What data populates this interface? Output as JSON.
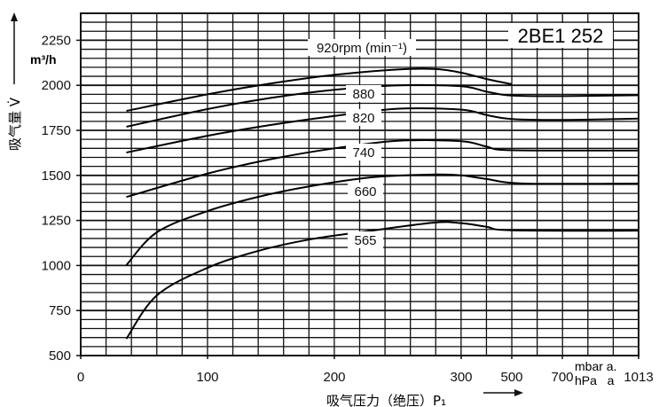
{
  "chart_data": {
    "type": "line",
    "title": "2BE1 252",
    "xlabel": "吸气压力（绝压）P₁",
    "ylabel": "吸气量 V̇",
    "yunit": "m³/h",
    "xunit_top": "mbar a.",
    "xunit_bottom": "hPa   a",
    "xticks": [
      0,
      100,
      200,
      300,
      500,
      700,
      1013
    ],
    "xtick_labels": [
      "0",
      "100",
      "200",
      "300",
      "500",
      "700",
      "1013"
    ],
    "yticks": [
      500,
      750,
      1000,
      1250,
      1500,
      1750,
      2000,
      2250
    ],
    "ytick_labels": [
      "500",
      "750",
      "1000",
      "1250",
      "1500",
      "1750",
      "2000",
      "2250"
    ],
    "ylim": [
      500,
      2400
    ],
    "xlim": [
      0,
      1013
    ],
    "grid": true,
    "series": [
      {
        "name": "920rpm (min⁻¹)",
        "points": [
          [
            36,
            1858
          ],
          [
            100,
            1950
          ],
          [
            150,
            2010
          ],
          [
            200,
            2058
          ],
          [
            250,
            2088
          ],
          [
            280,
            2090
          ],
          [
            300,
            2070
          ],
          [
            400,
            2035
          ],
          [
            500,
            2006
          ]
        ]
      },
      {
        "name": "880",
        "points": [
          [
            36,
            1770
          ],
          [
            100,
            1868
          ],
          [
            150,
            1930
          ],
          [
            200,
            1975
          ],
          [
            250,
            2000
          ],
          [
            300,
            1995
          ],
          [
            400,
            1965
          ],
          [
            500,
            1943
          ],
          [
            700,
            1940
          ],
          [
            1013,
            1945
          ]
        ]
      },
      {
        "name": "820",
        "points": [
          [
            36,
            1627
          ],
          [
            100,
            1720
          ],
          [
            150,
            1780
          ],
          [
            200,
            1830
          ],
          [
            250,
            1870
          ],
          [
            300,
            1865
          ],
          [
            400,
            1835
          ],
          [
            500,
            1813
          ],
          [
            700,
            1808
          ],
          [
            1013,
            1815
          ]
        ]
      },
      {
        "name": "740",
        "points": [
          [
            36,
            1380
          ],
          [
            100,
            1510
          ],
          [
            150,
            1590
          ],
          [
            200,
            1650
          ],
          [
            250,
            1692
          ],
          [
            300,
            1690
          ],
          [
            400,
            1660
          ],
          [
            500,
            1640
          ],
          [
            1013,
            1638
          ]
        ]
      },
      {
        "name": "660",
        "points": [
          [
            36,
            1002
          ],
          [
            60,
            1184
          ],
          [
            100,
            1302
          ],
          [
            140,
            1381
          ],
          [
            181,
            1440
          ],
          [
            230,
            1490
          ],
          [
            279,
            1505
          ],
          [
            300,
            1500
          ],
          [
            400,
            1480
          ],
          [
            550,
            1455
          ],
          [
            1013,
            1455
          ]
        ]
      },
      {
        "name": "565",
        "points": [
          [
            36,
            593
          ],
          [
            60,
            834
          ],
          [
            100,
            987
          ],
          [
            140,
            1081
          ],
          [
            181,
            1145
          ],
          [
            230,
            1194
          ],
          [
            279,
            1238
          ],
          [
            300,
            1235
          ],
          [
            400,
            1215
          ],
          [
            500,
            1195
          ],
          [
            1013,
            1193
          ]
        ]
      }
    ]
  }
}
